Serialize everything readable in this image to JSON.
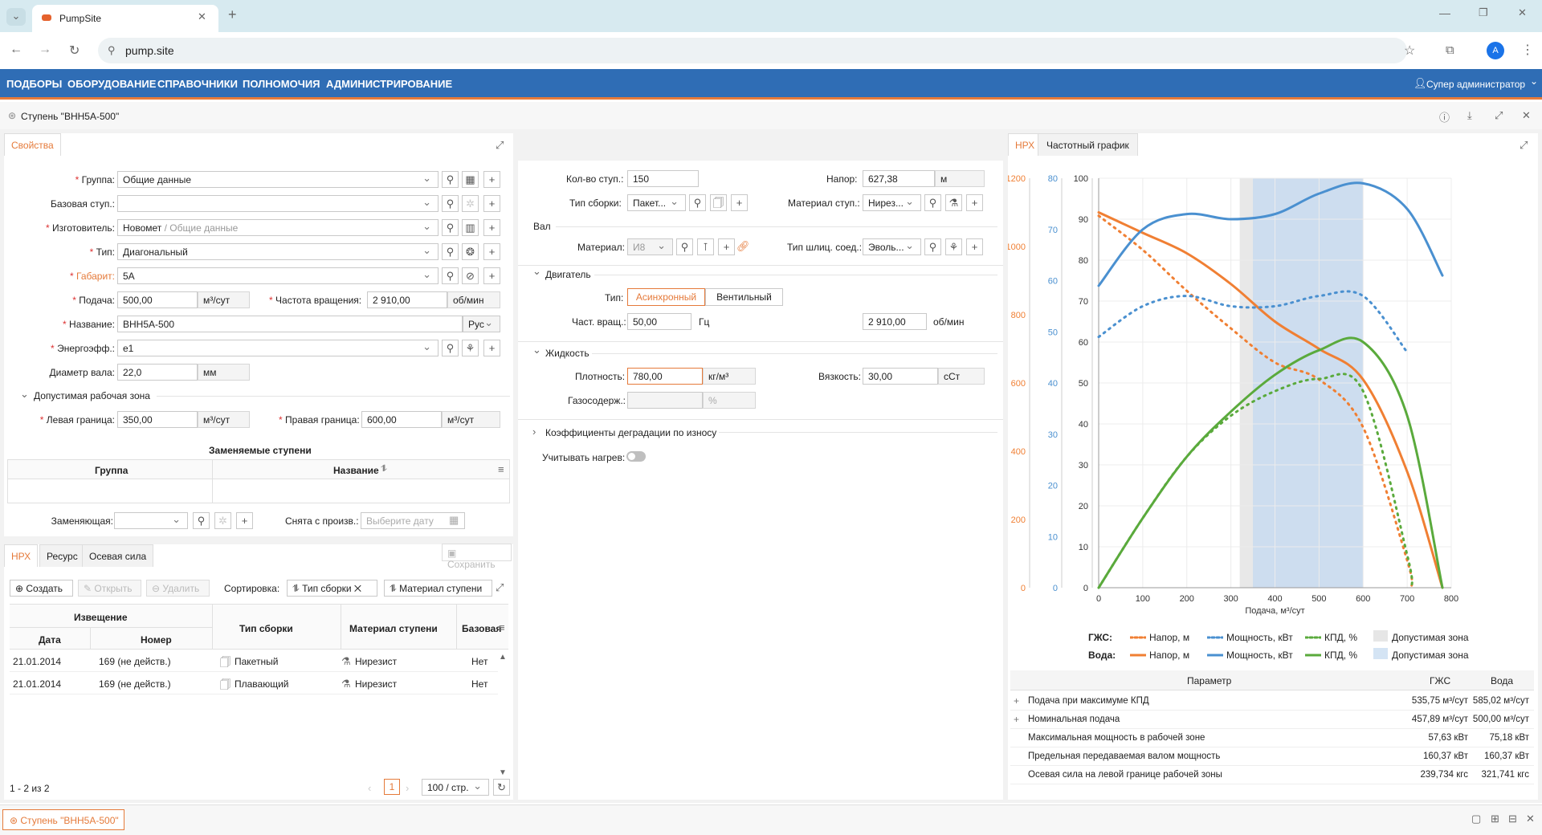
{
  "browser": {
    "tab_title": "PumpSite",
    "url": "pump.site",
    "avatar": "A"
  },
  "nav": {
    "items": [
      "ПОДБОРЫ",
      "ОБОРУДОВАНИЕ",
      "СПРАВОЧНИКИ",
      "ПОЛНОМОЧИЯ",
      "АДМИНИСТРИРОВАНИЕ"
    ],
    "user": "Супер администратор"
  },
  "page": {
    "title": "Ступень \"ВНН5А-500\"",
    "footer_tab": "Ступень \"ВНН5А-500\""
  },
  "props": {
    "tab": "Свойства",
    "group_label": "Группа:",
    "group_value": "Общие данные",
    "base_label": "Базовая ступ.:",
    "maker_label": "Изготовитель:",
    "maker_value": "Новомет",
    "maker_sub": "/ Общие данные",
    "type_label": "Тип:",
    "type_value": "Диагональный",
    "size_label": "Габарит:",
    "size_value": "5А",
    "flow_label": "Подача:",
    "flow_value": "500,00",
    "flow_unit": "м³/сут",
    "freq_label": "Частота вращения:",
    "freq_value": "2 910,00",
    "freq_unit": "об/мин",
    "name_label": "Название:",
    "name_value": "ВНН5А-500",
    "lang": "Рус",
    "eff_label": "Энергоэфф.:",
    "eff_value": "e1",
    "shaft_label": "Диаметр вала:",
    "shaft_value": "22,0",
    "shaft_unit": "мм",
    "zone_title": "Допустимая рабочая зона",
    "left_label": "Левая граница:",
    "left_value": "350,00",
    "left_unit": "м³/сут",
    "right_label": "Правая граница:",
    "right_value": "600,00",
    "right_unit": "м³/сут",
    "repl_title": "Заменяемые ступени",
    "repl_col1": "Группа",
    "repl_col2": "Название",
    "replacing_label": "Заменяющая:",
    "removed_label": "Снята с произв.:",
    "date_placeholder": "Выберите дату"
  },
  "lower": {
    "tabs": [
      "НРХ",
      "Ресурс",
      "Осевая сила"
    ],
    "save": "Сохранить",
    "create": "Создать",
    "open": "Открыть",
    "delete": "Удалить",
    "sort_label": "Сортировка:",
    "sort1": "Тип сборки",
    "sort2": "Материал ступени",
    "col_notice": "Извещение",
    "col_date": "Дата",
    "col_number": "Номер",
    "col_assembly": "Тип сборки",
    "col_material": "Материал ступени",
    "col_base": "Базовая",
    "rows": [
      {
        "date": "21.01.2014",
        "number": "169 (не действ.)",
        "assembly": "Пакетный",
        "material": "Нирезист",
        "base": "Нет"
      },
      {
        "date": "21.01.2014",
        "number": "169 (не действ.)",
        "assembly": "Плавающий",
        "material": "Нирезист",
        "base": "Нет"
      }
    ],
    "count": "1 - 2 из 2",
    "page": "1",
    "per_page": "100 / стр."
  },
  "mid": {
    "stages_label": "Кол-во ступ.:",
    "stages_value": "150",
    "head_label": "Напор:",
    "head_value": "627,38",
    "head_unit": "м",
    "assembly_label": "Тип сборки:",
    "assembly_value": "Пакет...",
    "material_label": "Материал ступ.:",
    "material_value": "Нирез...",
    "shaft_title": "Вал",
    "shaft_mat_label": "Материал:",
    "shaft_mat_value": "И8",
    "spline_label": "Тип шлиц. соед.:",
    "spline_value": "Эволь...",
    "motor_title": "Двигатель",
    "motor_type_label": "Тип:",
    "motor_async": "Асинхронный",
    "motor_valve": "Вентильный",
    "freq_label": "Част. вращ.:",
    "freq_value": "50,00",
    "freq_unit": "Гц",
    "rpm_value": "2 910,00",
    "rpm_unit": "об/мин",
    "fluid_title": "Жидкость",
    "density_label": "Плотность:",
    "density_value": "780,00",
    "density_unit": "кг/м³",
    "visc_label": "Вязкость:",
    "visc_value": "30,00",
    "visc_unit": "сСт",
    "gas_label": "Газосодерж.:",
    "gas_unit": "%",
    "degr_title": "Коэффициенты деградации по износу",
    "heat_label": "Учитывать нагрев:"
  },
  "right": {
    "tabs": [
      "НРХ",
      "Частотный график"
    ],
    "legend_gzhs": "ГЖС:",
    "legend_water": "Вода:",
    "leg_head": "Напор, м",
    "leg_power": "Мощность, кВт",
    "leg_eff": "КПД, %",
    "leg_zone": "Допустимая зона",
    "tbl_param": "Параметр",
    "tbl_gzhs": "ГЖС",
    "tbl_water": "Вода",
    "rows": [
      {
        "name": "Подача при максимуме КПД",
        "g": "535,75 м³/сут",
        "w": "585,02 м³/сут",
        "exp": "+"
      },
      {
        "name": "Номинальная подача",
        "g": "457,89 м³/сут",
        "w": "500,00 м³/сут",
        "exp": "+"
      },
      {
        "name": "Максимальная мощность в рабочей зоне",
        "g": "57,63 кВт",
        "w": "75,18 кВт",
        "exp": ""
      },
      {
        "name": "Предельная передаваемая валом мощность",
        "g": "160,37 кВт",
        "w": "160,37 кВт",
        "exp": ""
      },
      {
        "name": "Осевая сила на левой границе рабочей зоны",
        "g": "239,734 кгс",
        "w": "321,741 кгс",
        "exp": ""
      }
    ]
  },
  "chart_data": {
    "type": "line",
    "xlabel": "Подача, м³/сут",
    "xlim": [
      0,
      800
    ],
    "x_ticks": [
      0,
      100,
      200,
      300,
      400,
      500,
      600,
      700,
      800
    ],
    "head_ticks": [
      0,
      200,
      400,
      600,
      800,
      1000,
      1200
    ],
    "power_ticks": [
      0,
      10,
      20,
      30,
      40,
      50,
      60,
      70,
      80
    ],
    "eff_ticks": [
      0,
      10,
      20,
      30,
      40,
      50,
      60,
      70,
      80,
      90,
      100
    ],
    "colors": {
      "head": "#f07f33",
      "power": "#4a90d0",
      "eff": "#5aaa3c"
    },
    "zones": {
      "gzhs": [
        320,
        600
      ],
      "water": [
        350,
        600
      ]
    },
    "series": [
      {
        "name": "Напор, м",
        "fluid": "Вода",
        "axis": "head",
        "x": [
          0,
          100,
          200,
          300,
          400,
          500,
          600,
          700,
          780
        ],
        "y": [
          1100,
          1040,
          980,
          890,
          780,
          700,
          610,
          340,
          0
        ]
      },
      {
        "name": "Напор, м",
        "fluid": "ГЖС",
        "axis": "head",
        "x": [
          0,
          100,
          200,
          300,
          400,
          500,
          600,
          700,
          710
        ],
        "y": [
          1090,
          990,
          870,
          760,
          660,
          610,
          470,
          80,
          0
        ]
      },
      {
        "name": "Мощность, кВт",
        "fluid": "Вода",
        "axis": "power",
        "x": [
          0,
          100,
          200,
          300,
          400,
          500,
          600,
          700,
          780
        ],
        "y": [
          59,
          70,
          73,
          72,
          73,
          77,
          79,
          74,
          61
        ]
      },
      {
        "name": "Мощность, кВт",
        "fluid": "ГЖС",
        "axis": "power",
        "x": [
          0,
          100,
          200,
          300,
          400,
          500,
          600,
          700
        ],
        "y": [
          49,
          55,
          57,
          55,
          55,
          57,
          57,
          46
        ]
      },
      {
        "name": "КПД, %",
        "fluid": "Вода",
        "axis": "eff",
        "x": [
          0,
          100,
          200,
          300,
          400,
          500,
          600,
          700,
          780
        ],
        "y": [
          0,
          17,
          32,
          43,
          52,
          58,
          60,
          42,
          0
        ]
      },
      {
        "name": "КПД, %",
        "fluid": "ГЖС",
        "axis": "eff",
        "x": [
          0,
          100,
          200,
          300,
          400,
          500,
          600,
          700,
          710
        ],
        "y": [
          0,
          17,
          32,
          42,
          48,
          51,
          48,
          8,
          0
        ]
      }
    ]
  }
}
